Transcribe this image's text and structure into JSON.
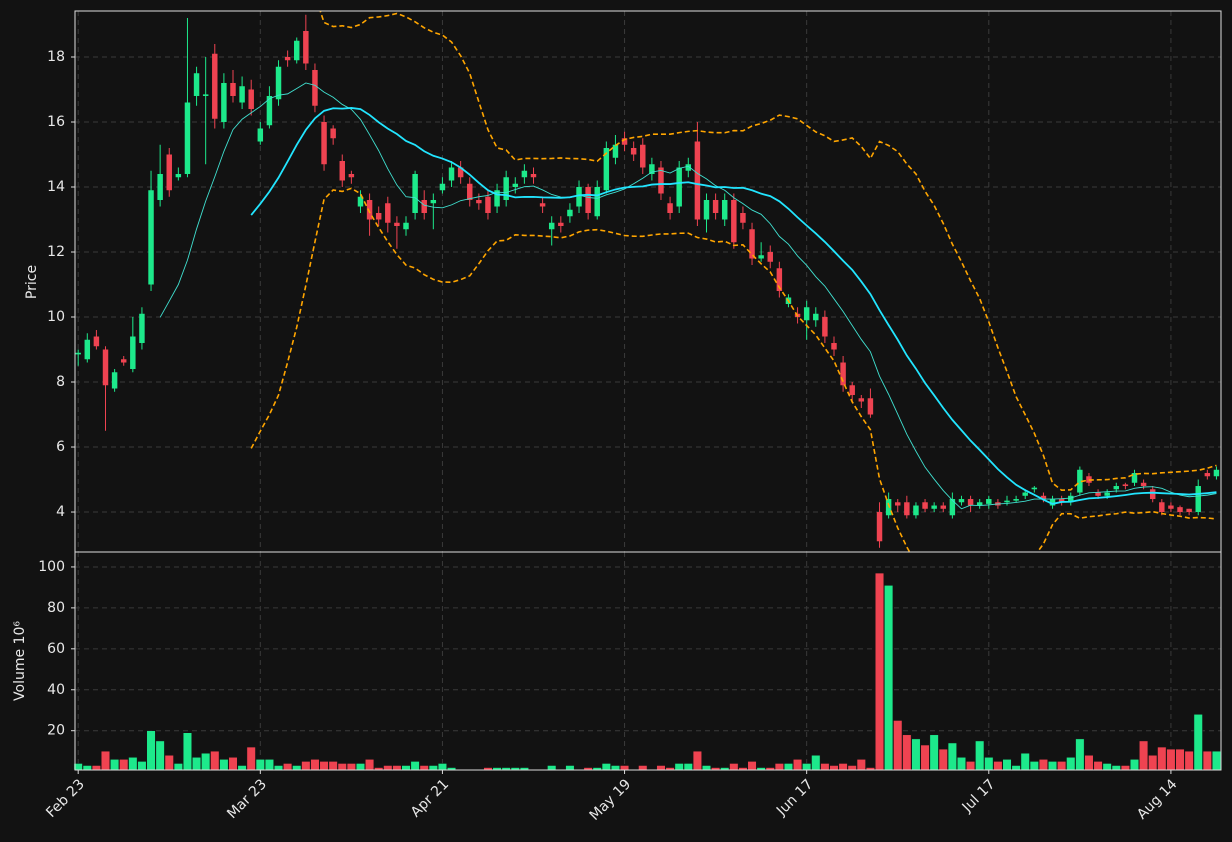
{
  "chart_data": {
    "type": "candlestick",
    "xlim": [
      -0.35,
      125.5
    ],
    "xticks": [
      {
        "value": 0,
        "label": "Feb 23"
      },
      {
        "value": 20,
        "label": "Mar 23"
      },
      {
        "value": 40,
        "label": "Apr 21"
      },
      {
        "value": 60,
        "label": "May 19"
      },
      {
        "value": 80,
        "label": "Jun 17"
      },
      {
        "value": 100,
        "label": "Jul 17"
      },
      {
        "value": 120,
        "label": "Aug 14"
      }
    ],
    "ylabel": "Price",
    "ylim": [
      2.77,
      19.415
    ],
    "yticks": [
      4,
      6,
      8,
      10,
      12,
      14,
      16,
      18
    ],
    "volume_ylabel": "Volume  10⁶",
    "volume_ylim": [
      0.8,
      107.3
    ],
    "volume_yticks": [
      20,
      40,
      60,
      80,
      100
    ],
    "grid": true,
    "up_color": "#1de98b",
    "down_color": "#ef4351",
    "moving_averages": [
      {
        "period": 10,
        "color": "#40e0d0",
        "width": 0.9
      },
      {
        "period": 20,
        "color": "#22e5ff",
        "width": 1.8
      }
    ],
    "bollinger": {
      "period": 20,
      "std": 2,
      "color": "#ffa500"
    },
    "open": [
      8.85,
      8.7,
      9.4,
      9.0,
      7.8,
      8.7,
      8.4,
      9.2,
      11.0,
      13.6,
      15.0,
      14.3,
      14.4,
      16.8,
      16.8,
      18.1,
      16.0,
      17.2,
      16.6,
      17.0,
      15.4,
      15.9,
      16.7,
      18.0,
      17.9,
      18.8,
      17.6,
      16.0,
      15.8,
      14.8,
      14.4,
      13.4,
      13.6,
      13.2,
      13.5,
      12.9,
      12.7,
      13.2,
      13.6,
      13.5,
      13.9,
      14.2,
      14.6,
      14.1,
      13.6,
      13.7,
      13.4,
      13.6,
      14.0,
      14.3,
      14.4,
      13.5,
      12.7,
      12.9,
      13.1,
      13.4,
      14.0,
      13.1,
      13.9,
      14.9,
      15.5,
      15.2,
      15.3,
      14.4,
      14.6,
      13.5,
      13.4,
      14.5,
      15.4,
      13.0,
      13.6,
      13.0,
      13.6,
      13.2,
      12.7,
      11.8,
      12.0,
      11.5,
      10.4,
      10.1,
      9.9,
      9.9,
      10.0,
      9.2,
      8.6,
      7.9,
      7.5,
      7.5,
      4.0,
      3.9,
      4.3,
      4.3,
      3.9,
      4.3,
      4.1,
      4.2,
      3.9,
      4.3,
      4.4,
      4.2,
      4.25,
      4.3,
      4.3,
      4.35,
      4.5,
      4.7,
      4.5,
      4.2,
      4.4,
      4.3,
      4.6,
      5.1,
      4.6,
      4.5,
      4.7,
      4.85,
      4.9,
      4.9,
      4.7,
      4.3,
      4.2,
      4.15,
      4.1,
      4.0,
      5.2,
      5.1
    ],
    "high": [
      9.0,
      9.5,
      9.6,
      9.1,
      8.4,
      8.8,
      10.0,
      10.3,
      14.5,
      15.3,
      15.2,
      14.6,
      19.2,
      17.7,
      18.0,
      18.4,
      17.5,
      17.6,
      17.4,
      17.3,
      16.0,
      17.1,
      17.9,
      18.2,
      18.6,
      19.3,
      17.8,
      16.2,
      15.9,
      15.0,
      14.5,
      13.9,
      13.8,
      13.4,
      13.7,
      13.1,
      13.1,
      14.5,
      13.9,
      13.8,
      14.3,
      14.8,
      14.8,
      14.3,
      13.8,
      13.9,
      14.1,
      14.5,
      14.3,
      14.7,
      14.6,
      13.7,
      13.1,
      13.1,
      13.5,
      14.2,
      14.1,
      14.2,
      15.4,
      15.6,
      15.7,
      15.4,
      15.5,
      14.9,
      14.8,
      13.7,
      14.8,
      14.9,
      16.0,
      13.8,
      13.8,
      13.8,
      13.8,
      13.4,
      12.9,
      12.3,
      12.2,
      11.7,
      10.7,
      10.3,
      10.5,
      10.3,
      10.2,
      9.4,
      8.8,
      8.0,
      7.6,
      7.8,
      4.3,
      4.6,
      4.4,
      4.5,
      4.3,
      4.4,
      4.3,
      4.3,
      4.6,
      4.5,
      4.5,
      4.4,
      4.5,
      4.4,
      4.5,
      4.5,
      4.7,
      4.8,
      4.6,
      4.5,
      4.5,
      4.6,
      5.4,
      5.2,
      4.7,
      4.7,
      4.9,
      4.9,
      5.3,
      5.0,
      4.8,
      4.4,
      4.3,
      4.2,
      4.1,
      5.0,
      5.3,
      5.4
    ],
    "low": [
      8.5,
      8.6,
      9.0,
      6.5,
      7.7,
      8.5,
      8.3,
      9.0,
      10.8,
      13.4,
      13.7,
      14.2,
      14.3,
      16.5,
      14.7,
      15.8,
      15.8,
      16.6,
      16.4,
      16.2,
      15.3,
      15.8,
      16.5,
      17.7,
      17.8,
      17.6,
      16.3,
      14.5,
      15.3,
      14.0,
      14.1,
      13.2,
      12.5,
      12.8,
      12.6,
      12.1,
      12.5,
      13.0,
      13.0,
      12.7,
      13.8,
      14.0,
      14.1,
      13.4,
      13.3,
      13.0,
      13.2,
      13.4,
      13.8,
      14.1,
      14.1,
      13.2,
      12.2,
      12.6,
      12.9,
      13.2,
      13.0,
      13.0,
      13.8,
      14.7,
      15.1,
      14.8,
      14.4,
      14.2,
      13.6,
      13.0,
      13.2,
      14.3,
      12.8,
      12.6,
      13.0,
      12.8,
      12.1,
      12.7,
      11.6,
      11.7,
      11.5,
      10.6,
      10.3,
      9.8,
      9.3,
      9.7,
      9.2,
      8.8,
      7.7,
      7.4,
      7.2,
      6.9,
      2.9,
      3.8,
      4.0,
      3.8,
      3.8,
      4.0,
      4.0,
      4.0,
      3.8,
      4.2,
      4.0,
      4.1,
      4.1,
      4.1,
      4.2,
      4.3,
      4.4,
      4.6,
      4.3,
      4.1,
      4.2,
      4.2,
      4.5,
      4.8,
      4.4,
      4.4,
      4.6,
      4.7,
      4.8,
      4.7,
      4.3,
      3.9,
      4.0,
      3.9,
      3.9,
      3.9,
      5.0,
      5.0
    ],
    "close": [
      8.9,
      9.3,
      9.1,
      7.9,
      8.3,
      8.6,
      9.4,
      10.1,
      13.9,
      14.4,
      13.9,
      14.4,
      16.6,
      17.5,
      16.85,
      16.1,
      17.2,
      16.8,
      17.1,
      16.4,
      15.8,
      16.8,
      17.7,
      17.9,
      18.5,
      17.8,
      16.5,
      14.7,
      15.5,
      14.2,
      14.3,
      13.7,
      13.0,
      13.0,
      12.9,
      12.8,
      12.9,
      14.4,
      13.2,
      13.6,
      14.1,
      14.6,
      14.3,
      13.6,
      13.5,
      13.2,
      13.9,
      14.3,
      14.1,
      14.5,
      14.3,
      13.4,
      12.9,
      12.8,
      13.3,
      14.0,
      13.2,
      14.0,
      15.2,
      15.3,
      15.3,
      15.0,
      14.6,
      14.7,
      13.8,
      13.2,
      14.6,
      14.7,
      13.0,
      13.6,
      13.2,
      13.6,
      12.3,
      12.9,
      11.8,
      11.9,
      11.7,
      10.8,
      10.6,
      10.0,
      10.3,
      10.1,
      9.4,
      9.0,
      7.9,
      7.6,
      7.4,
      7.0,
      3.1,
      4.4,
      4.2,
      3.9,
      4.2,
      4.1,
      4.2,
      4.1,
      4.4,
      4.4,
      4.2,
      4.3,
      4.4,
      4.2,
      4.35,
      4.4,
      4.6,
      4.75,
      4.4,
      4.4,
      4.3,
      4.5,
      5.3,
      4.9,
      4.5,
      4.6,
      4.8,
      4.8,
      5.2,
      4.8,
      4.4,
      4.0,
      4.1,
      4.0,
      4.0,
      4.8,
      5.1,
      5.3
    ],
    "volume": [
      4,
      3,
      3,
      10,
      6,
      6,
      7,
      5,
      20,
      15,
      8,
      4,
      19,
      7,
      9,
      10,
      6,
      7,
      3,
      12,
      6,
      6,
      3,
      4,
      3,
      5,
      6,
      5,
      5,
      4,
      4,
      4,
      6,
      2,
      3,
      3,
      3,
      5,
      3,
      3,
      4,
      2,
      1,
      1,
      1,
      2,
      2,
      2,
      2,
      2,
      1,
      1,
      3,
      1,
      3,
      1,
      2,
      2,
      4,
      3,
      3,
      1,
      3,
      1,
      3,
      2,
      4,
      4,
      10,
      3,
      2,
      2,
      4,
      2,
      5,
      2,
      2,
      4,
      4,
      6,
      4,
      8,
      4,
      3,
      4,
      3,
      6,
      2,
      97,
      91,
      25,
      18,
      16,
      13,
      18,
      11,
      14,
      7,
      5,
      15,
      7,
      5,
      6,
      3,
      9,
      5,
      6,
      5,
      5,
      7,
      16,
      8,
      5,
      4,
      3,
      3,
      6,
      15,
      8,
      12,
      11,
      11,
      10,
      28,
      10,
      10
    ]
  }
}
